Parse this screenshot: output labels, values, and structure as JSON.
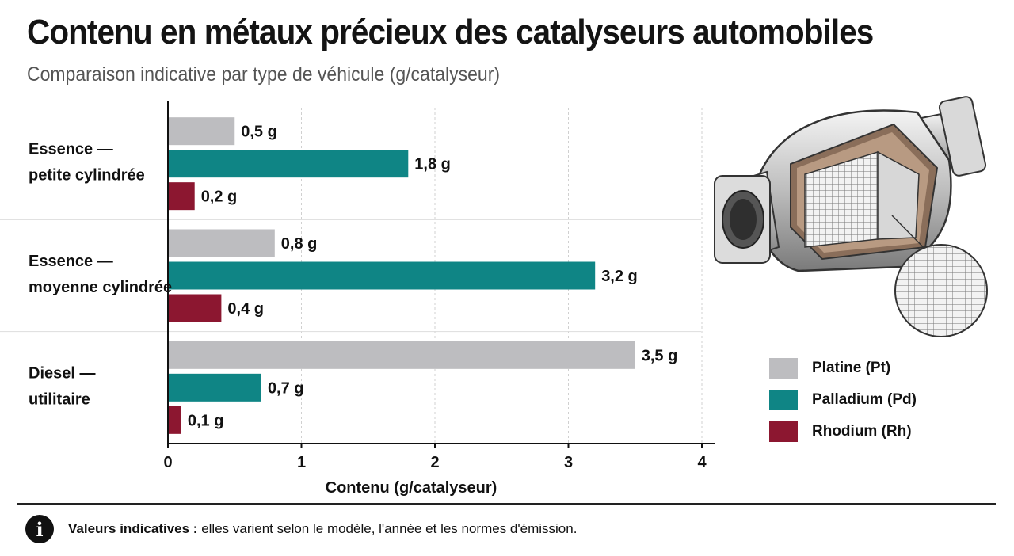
{
  "title": "Contenu en métaux précieux des catalyseurs automobiles",
  "subtitle": "Comparaison indicative par type de véhicule (g/catalyseur)",
  "colors": {
    "platine": "#bdbdc0",
    "palladium": "#0f8585",
    "rhodium": "#8c1730"
  },
  "chart_data": {
    "type": "bar",
    "orientation": "horizontal",
    "title": "Contenu en métaux précieux des catalyseurs automobiles",
    "subtitle": "Comparaison indicative par type de véhicule (g/catalyseur)",
    "xlabel": "Contenu (g/catalyseur)",
    "ylabel": "",
    "xlim": [
      0,
      4
    ],
    "xticks": [
      "0",
      "1",
      "2",
      "3",
      "4"
    ],
    "grid": "vertical dashed",
    "legend_position": "right",
    "categories": [
      [
        "Essence —",
        "petite cylindrée"
      ],
      [
        "Essence —",
        "moyenne cylindrée"
      ],
      [
        "Diesel —",
        "utilitaire"
      ]
    ],
    "series": [
      {
        "name": "Platine (Pt)",
        "color": "#bdbdc0",
        "values": [
          0.5,
          0.8,
          3.5
        ],
        "labels": [
          "0,5 g",
          "0,8 g",
          "3,5 g"
        ]
      },
      {
        "name": "Palladium (Pd)",
        "color": "#0f8585",
        "values": [
          1.8,
          3.2,
          0.7
        ],
        "labels": [
          "1,8 g",
          "3,2 g",
          "0,7 g"
        ]
      },
      {
        "name": "Rhodium (Rh)",
        "color": "#8c1730",
        "values": [
          0.2,
          0.4,
          0.1
        ],
        "labels": [
          "0,2 g",
          "0,4 g",
          "0,1 g"
        ]
      }
    ]
  },
  "footer": {
    "icon": "info-icon",
    "bold": "Valeurs  indicatives :",
    "text": " elles varient selon le modèle, l'année et les normes d'émission."
  },
  "illustration": {
    "icon": "catalytic-converter-icon"
  }
}
